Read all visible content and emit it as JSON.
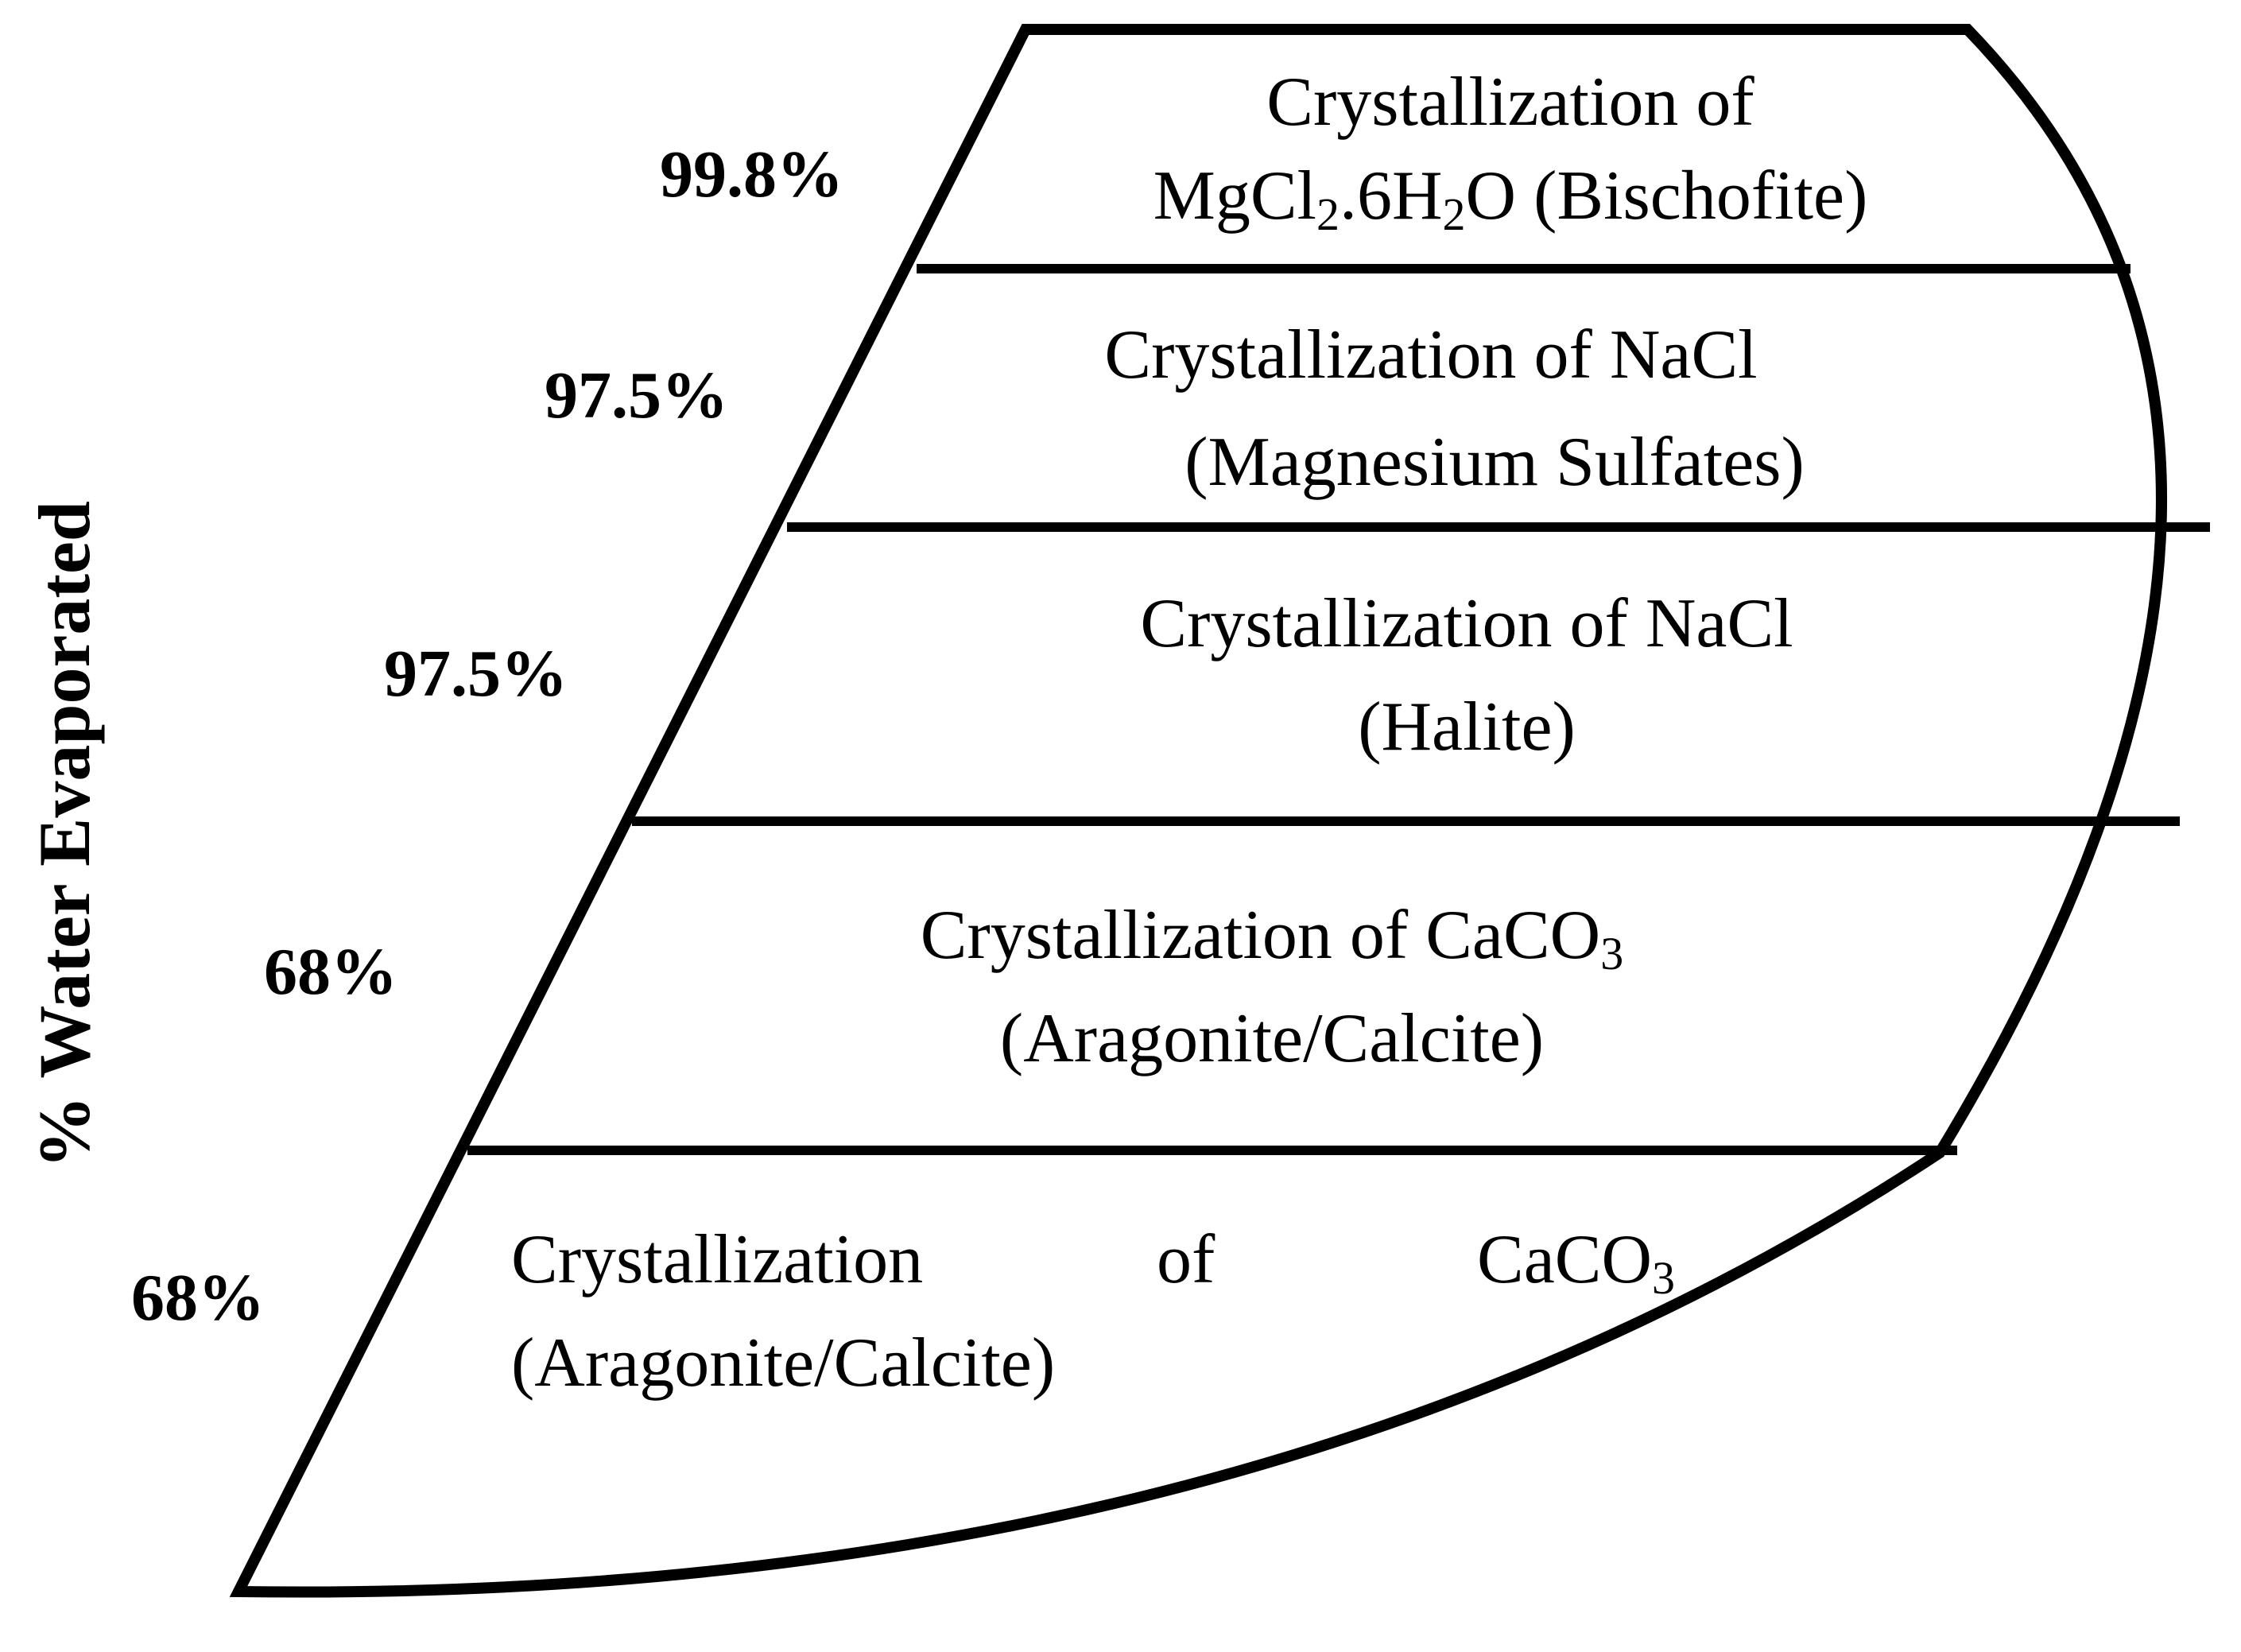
{
  "axis_title": "% Water Evaporated",
  "stages": [
    {
      "percent": "99.8%",
      "line1": {
        "pre": "Crystallization of",
        "sub": "",
        "post": ""
      },
      "line2": {
        "parts": [
          {
            "t": "MgCl",
            "sub": false
          },
          {
            "t": "2",
            "sub": true
          },
          {
            "t": ".6H",
            "sub": false
          },
          {
            "t": "2",
            "sub": true
          },
          {
            "t": "O (Bischofite)",
            "sub": false
          }
        ]
      }
    },
    {
      "percent": "97.5%",
      "line1": {
        "pre": "Crystallization of NaCl",
        "sub": "",
        "post": ""
      },
      "line2": {
        "parts": [
          {
            "t": "(Magnesium Sulfates)",
            "sub": false
          }
        ]
      }
    },
    {
      "percent": "97.5%",
      "line1": {
        "pre": "Crystallization of NaCl",
        "sub": "",
        "post": ""
      },
      "line2": {
        "parts": [
          {
            "t": "(Halite)",
            "sub": false
          }
        ]
      }
    },
    {
      "percent": "68%",
      "line1": {
        "pre": "Crystallization of CaCO",
        "sub": "3",
        "post": ""
      },
      "line2": {
        "parts": [
          {
            "t": "(Aragonite/Calcite)",
            "sub": false
          }
        ]
      }
    },
    {
      "percent": "68%",
      "line1_justified": {
        "w1": "Crystallization",
        "w2": "of",
        "w3": "CaCO",
        "sub": "3"
      },
      "line2": {
        "parts": [
          {
            "t": "(Aragonite/Calcite)",
            "sub": false
          }
        ]
      }
    }
  ]
}
